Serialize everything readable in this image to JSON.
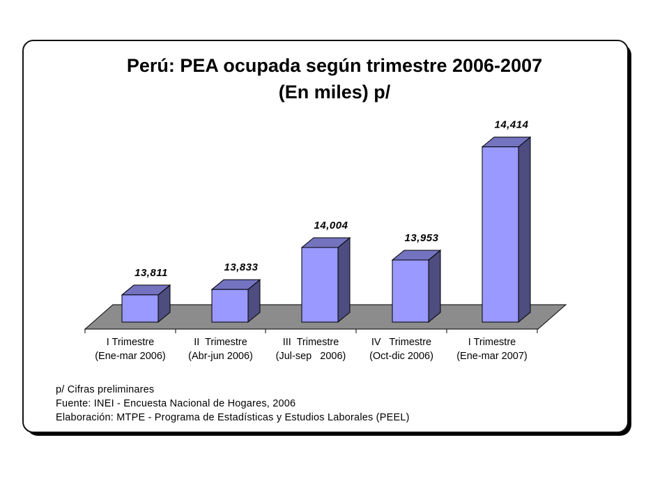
{
  "chart_data": {
    "type": "bar",
    "title": "Perú: PEA ocupada según trimestre 2006-2007",
    "subtitle": "(En miles) p/",
    "categories": [
      [
        "I Trimestre",
        "(Ene-mar 2006)"
      ],
      [
        "II  Trimestre",
        "(Abr-jun 2006)"
      ],
      [
        "III  Trimestre",
        "(Jul-sep   2006)"
      ],
      [
        "IV   Trimestre",
        "(Oct-dic 2006)"
      ],
      [
        "I Trimestre",
        "(Ene-mar 2007)"
      ]
    ],
    "values": [
      13811,
      13833,
      14004,
      13953,
      14414
    ],
    "data_labels": [
      "13,811",
      "13,833",
      "14,004",
      "13,953",
      "14,414"
    ],
    "ylim": [
      13700,
      14450
    ],
    "grid": false,
    "legend": "none",
    "style": "3d-column"
  },
  "colors": {
    "bar_front": "#9999ff",
    "bar_side": "#4d4d80",
    "bar_top": "#7373bf",
    "floor": "#8c8c8c"
  },
  "notes": [
    "p/ Cifras preliminares",
    "Fuente: INEI - Encuesta Nacional de Hogares, 2006",
    "Elaboración: MTPE - Programa de Estadísticas y Estudios Laborales (PEEL)"
  ]
}
